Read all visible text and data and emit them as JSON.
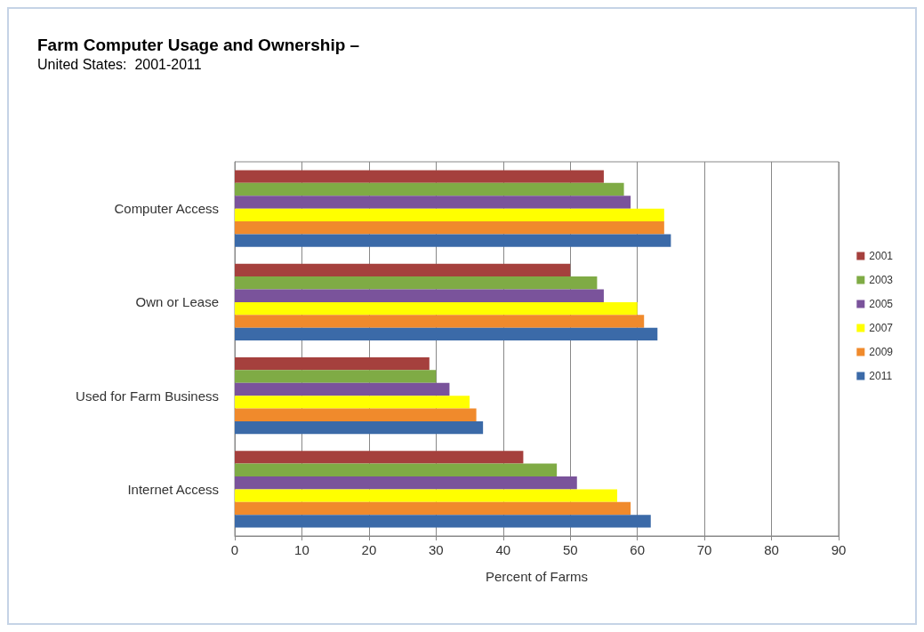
{
  "chart_data": {
    "type": "bar",
    "orientation": "horizontal",
    "title": "Farm Computer Usage and Ownership –",
    "subtitle": "United States:  2001-2011",
    "xlabel": "Percent of Farms",
    "categories": [
      "Computer Access",
      "Own or Lease",
      "Used for Farm Business",
      "Internet Access"
    ],
    "series": [
      {
        "name": "2001",
        "color": "#a5403d",
        "values": [
          55,
          50,
          29,
          43
        ]
      },
      {
        "name": "2003",
        "color": "#7fab45",
        "values": [
          58,
          54,
          30,
          48
        ]
      },
      {
        "name": "2005",
        "color": "#7a539b",
        "values": [
          59,
          55,
          32,
          51
        ]
      },
      {
        "name": "2007",
        "color": "#ffff00",
        "values": [
          64,
          60,
          35,
          57
        ]
      },
      {
        "name": "2009",
        "color": "#f08a2c",
        "values": [
          64,
          61,
          36,
          59
        ]
      },
      {
        "name": "2011",
        "color": "#3b6aa8",
        "values": [
          65,
          63,
          37,
          62
        ]
      }
    ],
    "xlim": [
      0,
      90
    ],
    "xticks": [
      0,
      10,
      20,
      30,
      40,
      50,
      60,
      70,
      80,
      90
    ],
    "grid": "x",
    "legend": "right"
  }
}
